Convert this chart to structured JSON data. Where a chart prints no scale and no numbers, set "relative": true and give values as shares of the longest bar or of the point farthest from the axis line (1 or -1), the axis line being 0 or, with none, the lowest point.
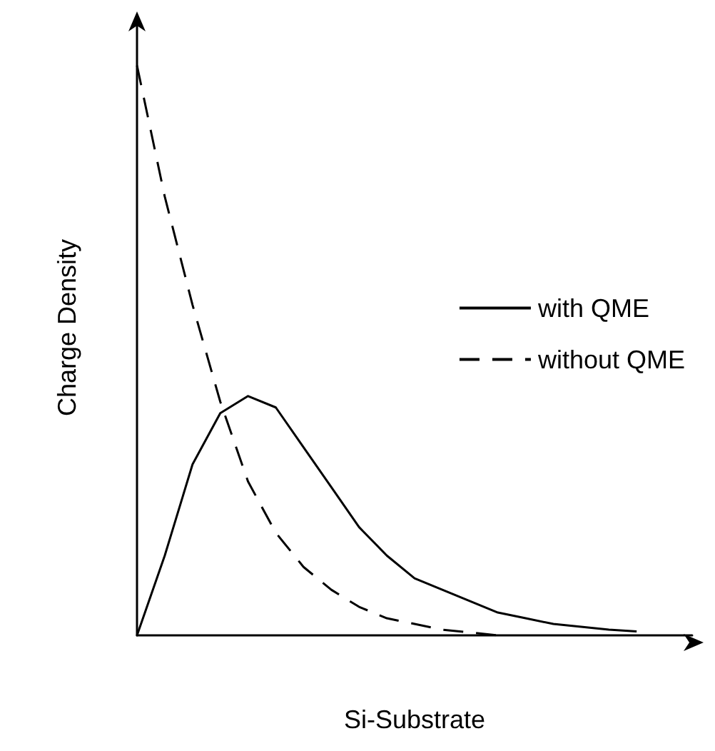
{
  "chart_data": {
    "type": "line",
    "relative": true,
    "xlabel": "Si-Substrate",
    "ylabel": "Charge Density",
    "legend": "right",
    "grid": false,
    "categories": [
      null,
      null,
      null,
      null,
      null,
      null,
      null,
      null,
      null,
      null,
      null,
      null,
      null,
      null,
      null,
      null,
      null,
      null,
      null,
      null,
      null
    ],
    "series": [
      {
        "name": "with QME",
        "color": "#000000",
        "line_style": "solid",
        "values": [
          0,
          0.14,
          0.3,
          0.39,
          0.42,
          0.4,
          0.33,
          0.26,
          0.19,
          0.14,
          0.1,
          0.08,
          0.06,
          0.04,
          0.03,
          0.02,
          0.015,
          0.01,
          0.007,
          null,
          null
        ]
      },
      {
        "name": "without QME",
        "color": "#000000",
        "line_style": "dashed",
        "values": [
          1,
          0.77,
          0.58,
          0.41,
          0.27,
          0.18,
          0.12,
          0.08,
          0.05,
          0.03,
          0.02,
          0.01,
          0.005,
          0,
          null,
          null,
          null,
          null,
          null,
          null,
          null
        ]
      }
    ]
  }
}
